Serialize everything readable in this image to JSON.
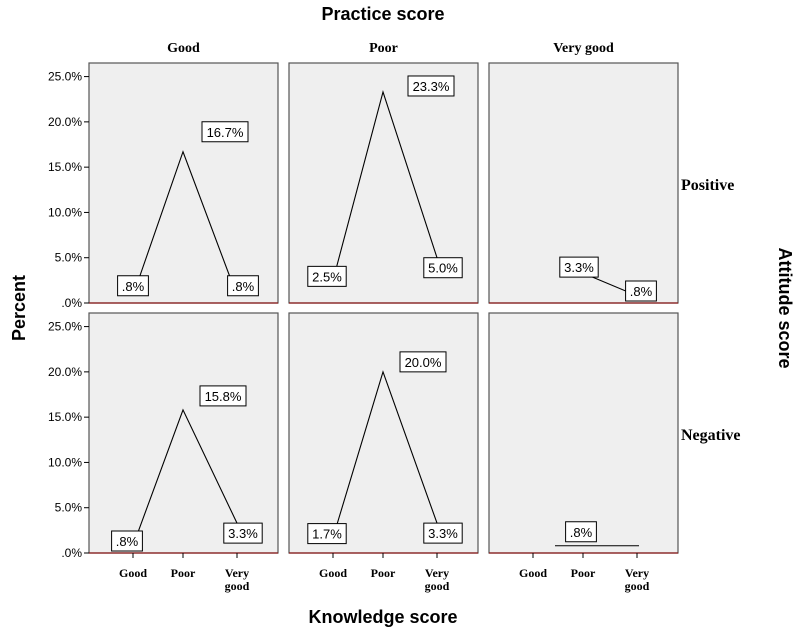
{
  "chart_data": {
    "type": "line",
    "title": "Practice score",
    "xlabel": "Knowledge score",
    "ylabel": "Percent",
    "row_axis_label": "Attitude score",
    "columns": [
      "Good",
      "Poor",
      "Very good"
    ],
    "rows": [
      "Positive",
      "Negative"
    ],
    "categories": [
      "Good",
      "Poor",
      "Very good"
    ],
    "category_labels": [
      [
        "Good"
      ],
      [
        "Poor"
      ],
      [
        "Very",
        "good"
      ]
    ],
    "y_ticks": [
      0,
      5,
      10,
      15,
      20,
      25
    ],
    "y_tick_labels": [
      ".0%",
      "5.0%",
      "10.0%",
      "15.0%",
      "20.0%",
      "25.0%"
    ],
    "ylim": [
      0,
      26.5
    ],
    "grid": false,
    "panels": [
      {
        "row": "Positive",
        "column": "Good",
        "values": [
          0.8,
          16.7,
          0.8
        ],
        "labels": [
          ".8%",
          "16.7%",
          ".8%"
        ]
      },
      {
        "row": "Positive",
        "column": "Poor",
        "values": [
          2.5,
          23.3,
          5.0
        ],
        "labels": [
          "2.5%",
          "23.3%",
          "5.0%"
        ]
      },
      {
        "row": "Positive",
        "column": "Very good",
        "values": [
          null,
          3.3,
          0.8
        ],
        "labels": [
          "",
          "3.3%",
          ".8%"
        ]
      },
      {
        "row": "Negative",
        "column": "Good",
        "values": [
          0.8,
          15.8,
          3.3
        ],
        "labels": [
          ".8%",
          "15.8%",
          "3.3%"
        ]
      },
      {
        "row": "Negative",
        "column": "Poor",
        "values": [
          1.7,
          20.0,
          3.3
        ],
        "labels": [
          "1.7%",
          "20.0%",
          "3.3%"
        ]
      },
      {
        "row": "Negative",
        "column": "Very good",
        "values": [
          null,
          0.8,
          0.8
        ],
        "labels": [
          "",
          ".8%",
          ""
        ]
      }
    ]
  }
}
